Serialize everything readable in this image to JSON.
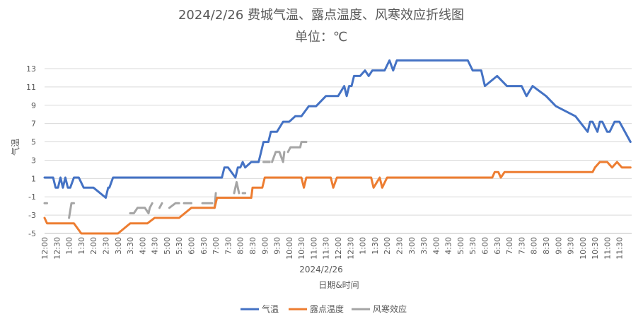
{
  "chart_data": {
    "type": "line",
    "title": "2024/2/26 费城气温、露点温度、风寒效应折线图",
    "subtitle": "单位：℃",
    "xlabel": "日期&时间",
    "x_group_label": "2024/2/26",
    "ylabel": "气温",
    "ylim": [
      -5,
      14
    ],
    "y_ticks": [
      13,
      11,
      9,
      7,
      5,
      3,
      1,
      -1,
      -3,
      -5
    ],
    "x_range": [
      0,
      24
    ],
    "x_tick_labels": [
      "12:00",
      "12:30",
      "1:00",
      "1:30",
      "2:00",
      "2:30",
      "3:00",
      "3:30",
      "4:00",
      "4:30",
      "5:00",
      "5:30",
      "6:00",
      "6:30",
      "7:00",
      "7:30",
      "8:00",
      "8:30",
      "9:00",
      "9:30",
      "10:00",
      "10:30",
      "11:00",
      "11:30",
      "12:00",
      "12:30",
      "1:00",
      "1:30",
      "2:00",
      "2:30",
      "3:00",
      "3:30",
      "4:00",
      "4:30",
      "5:00",
      "5:30",
      "6:00",
      "6:30",
      "7:00",
      "7:30",
      "8:00",
      "8:30",
      "9:00",
      "9:30",
      "10:00",
      "10:30",
      "11:00",
      "11:30"
    ],
    "legend_position": "bottom",
    "series": [
      {
        "name": "气温",
        "color": "#4472C4",
        "x": [
          0,
          0.35,
          0.45,
          0.55,
          0.65,
          0.75,
          0.85,
          0.95,
          1.05,
          1.2,
          1.4,
          1.6,
          1.8,
          2.0,
          2.5,
          2.6,
          2.65,
          2.8,
          2.9,
          3.0,
          3.5,
          4.5,
          5.5,
          6.5,
          7.0,
          7.25,
          7.35,
          7.5,
          7.8,
          7.9,
          8.0,
          8.1,
          8.2,
          8.45,
          8.75,
          8.85,
          8.95,
          9.15,
          9.25,
          9.5,
          9.75,
          10.0,
          10.25,
          10.5,
          10.8,
          11.1,
          11.5,
          12.0,
          12.25,
          12.35,
          12.45,
          12.55,
          12.65,
          12.9,
          13.1,
          13.25,
          13.4,
          13.5,
          13.9,
          14.1,
          14.25,
          14.4,
          14.6,
          15.0,
          15.5,
          16.0,
          16.5,
          16.9,
          17.3,
          17.5,
          17.65,
          17.75,
          17.85,
          18.0,
          18.5,
          18.9,
          19.05,
          19.2,
          19.3,
          19.45,
          19.5,
          19.7,
          19.95,
          20.5,
          20.9,
          21.7,
          22.2,
          22.3,
          22.4,
          22.6,
          22.7,
          22.8,
          23.0,
          23.1,
          23.3,
          23.5,
          23.95
        ],
        "y": [
          1.1,
          1.1,
          0.0,
          0.0,
          1.1,
          0.0,
          1.1,
          0.0,
          0.0,
          1.1,
          1.1,
          0.0,
          0.0,
          0.0,
          -1.1,
          0.0,
          0.0,
          1.1,
          1.1,
          1.1,
          1.1,
          1.1,
          1.1,
          1.1,
          1.1,
          1.1,
          2.2,
          2.2,
          1.1,
          2.2,
          2.2,
          2.8,
          2.2,
          2.8,
          2.8,
          3.9,
          5.0,
          5.0,
          6.1,
          6.1,
          7.2,
          7.2,
          7.8,
          7.8,
          8.9,
          8.9,
          10.0,
          10.0,
          11.1,
          10.0,
          11.1,
          11.1,
          12.2,
          12.2,
          12.8,
          12.2,
          12.8,
          12.8,
          12.8,
          13.9,
          12.8,
          13.9,
          13.9,
          13.9,
          13.9,
          13.9,
          13.9,
          13.9,
          13.9,
          12.8,
          12.8,
          12.8,
          12.8,
          11.1,
          12.2,
          11.1,
          11.1,
          11.1,
          11.1,
          11.1,
          11.1,
          10.0,
          11.1,
          10.0,
          8.9,
          7.8,
          6.1,
          7.2,
          7.2,
          6.1,
          7.2,
          7.2,
          6.1,
          6.1,
          7.2,
          7.2,
          5.0
        ]
      },
      {
        "name": "露点温度",
        "color": "#ED7D31",
        "x": [
          0,
          0.1,
          0.3,
          1.0,
          1.2,
          1.5,
          1.6,
          2.0,
          2.5,
          2.9,
          3.0,
          3.5,
          4.0,
          4.2,
          4.5,
          5.0,
          5.5,
          6.0,
          6.5,
          6.95,
          7.05,
          7.5,
          8.0,
          8.3,
          8.45,
          8.5,
          8.9,
          9.0,
          9.5,
          10.0,
          10.5,
          10.6,
          10.7,
          11.0,
          11.5,
          11.7,
          11.8,
          11.95,
          12.0,
          12.5,
          13.0,
          13.35,
          13.45,
          13.7,
          13.8,
          14.0,
          14.5,
          15.0,
          15.5,
          16.0,
          16.5,
          17.0,
          17.5,
          18.0,
          18.3,
          18.4,
          18.55,
          18.65,
          18.8,
          19.0,
          19.5,
          20.0,
          20.5,
          21.0,
          21.5,
          22.0,
          22.4,
          22.5,
          22.7,
          23.0,
          23.2,
          23.4,
          23.6,
          23.95
        ],
        "y": [
          -3.3,
          -3.9,
          -3.9,
          -3.9,
          -3.9,
          -5.0,
          -5.0,
          -5.0,
          -5.0,
          -5.0,
          -5.0,
          -3.9,
          -3.9,
          -3.9,
          -3.3,
          -3.3,
          -3.3,
          -2.2,
          -2.2,
          -2.2,
          -1.1,
          -1.1,
          -1.1,
          -1.1,
          -1.1,
          0.0,
          0.0,
          1.1,
          1.1,
          1.1,
          1.1,
          0.0,
          1.1,
          1.1,
          1.1,
          1.1,
          0.0,
          1.1,
          1.1,
          1.1,
          1.1,
          1.1,
          0.0,
          1.1,
          0.0,
          1.1,
          1.1,
          1.1,
          1.1,
          1.1,
          1.1,
          1.1,
          1.1,
          1.1,
          1.1,
          1.7,
          1.7,
          1.1,
          1.7,
          1.7,
          1.7,
          1.7,
          1.7,
          1.7,
          1.7,
          1.7,
          1.7,
          2.2,
          2.8,
          2.8,
          2.2,
          2.8,
          2.2,
          2.2
        ]
      },
      {
        "name": "风寒效应",
        "color": "#A5A5A5",
        "segments": [
          {
            "x": [
              0.0,
              0.1
            ],
            "y": [
              -1.7,
              -1.7
            ]
          },
          {
            "x": [
              1.0,
              1.1,
              1.2
            ],
            "y": [
              -3.3,
              -1.7,
              -1.7
            ]
          },
          {
            "x": [
              3.5,
              3.65,
              3.8,
              4.1,
              4.25,
              4.3,
              4.4
            ],
            "y": [
              -2.8,
              -2.8,
              -2.2,
              -2.2,
              -2.8,
              -2.2,
              -1.7
            ]
          },
          {
            "x": [
              4.7,
              4.8
            ],
            "y": [
              -2.2,
              -1.7
            ]
          },
          {
            "x": [
              5.1,
              5.35,
              5.5
            ],
            "y": [
              -2.2,
              -1.7,
              -1.7
            ]
          },
          {
            "x": [
              5.7,
              6.0
            ],
            "y": [
              -1.7,
              -1.7
            ]
          },
          {
            "x": [
              6.45,
              6.85
            ],
            "y": [
              -1.7,
              -1.7
            ]
          },
          {
            "x": [
              6.95,
              7.0
            ],
            "y": [
              -2.2,
              -0.6
            ]
          },
          {
            "x": [
              7.75,
              7.85,
              7.95
            ],
            "y": [
              -0.6,
              0.6,
              -0.6
            ]
          },
          {
            "x": [
              8.1,
              8.2
            ],
            "y": [
              -0.6,
              -0.6
            ]
          },
          {
            "x": [
              8.95,
              9.2
            ],
            "y": [
              2.8,
              2.8
            ]
          },
          {
            "x": [
              9.3,
              9.45,
              9.6,
              9.75,
              9.8
            ],
            "y": [
              2.8,
              3.9,
              3.9,
              2.8,
              3.9
            ]
          },
          {
            "x": [
              9.95,
              10.05,
              10.15,
              10.45,
              10.5,
              10.7
            ],
            "y": [
              3.9,
              4.4,
              4.4,
              4.4,
              5.0,
              5.0
            ]
          }
        ]
      }
    ]
  }
}
